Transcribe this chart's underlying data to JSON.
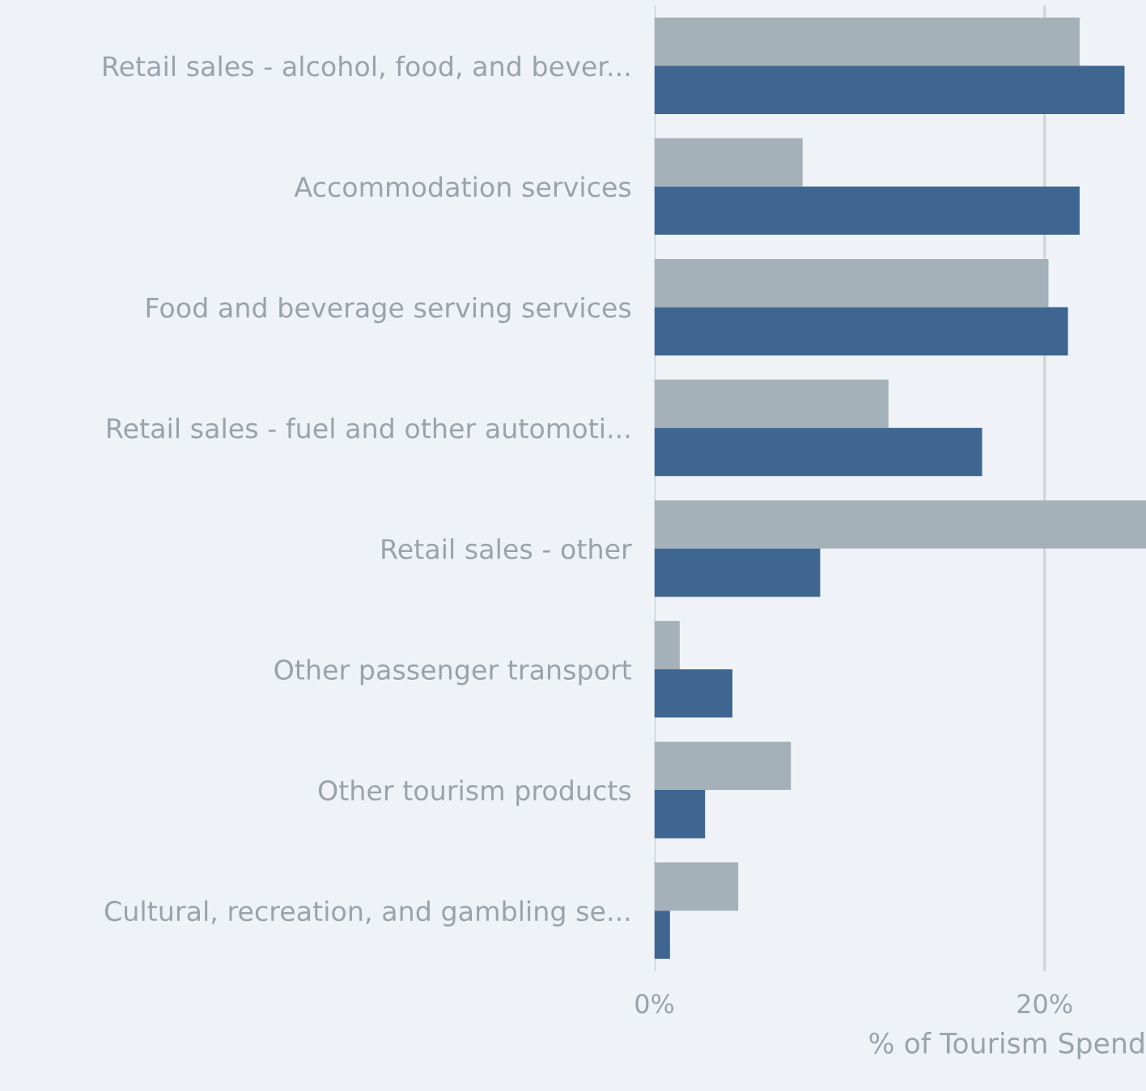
{
  "chart_data": {
    "type": "bar",
    "orientation": "horizontal",
    "categories": [
      "Retail sales - alcohol, food, and bever...",
      "Accommodation services",
      "Food and beverage serving services",
      "Retail sales - fuel and other automoti...",
      "Retail sales - other",
      "Other passenger transport",
      "Other tourism products",
      "Cultural, recreation, and gambling se..."
    ],
    "series": [
      {
        "color": "#a5b1b9",
        "values": [
          21.8,
          7.6,
          20.2,
          12.0,
          25.2,
          1.3,
          7.0,
          4.3
        ]
      },
      {
        "color": "#3f6690",
        "values": [
          24.1,
          21.8,
          21.2,
          16.8,
          8.5,
          4.0,
          2.6,
          0.8
        ]
      }
    ],
    "xlabel": "% of Tourism Spend",
    "xlim": [
      0,
      25.2
    ],
    "xticks": [
      {
        "value": 0,
        "label": "0%"
      },
      {
        "value": 20,
        "label": "20%"
      }
    ],
    "grid": "x",
    "legend": false
  }
}
